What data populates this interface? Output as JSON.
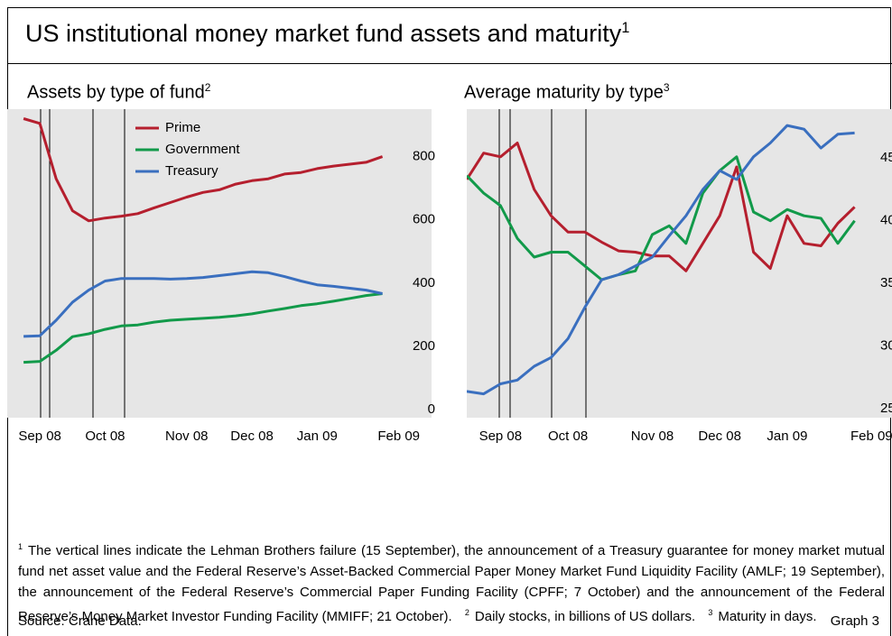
{
  "title": "US institutional money market fund assets and maturity",
  "title_note": "1",
  "footnotes": [
    {
      "marker": "1",
      "text": "The vertical lines indicate the Lehman Brothers failure (15 September), the announcement of a Treasury guarantee for money market mutual fund net asset value and the Federal Reserve’s Asset-Backed Commercial Paper Money Market Fund Liquidity Facility (AMLF; 19 September), the announcement of the Federal Reserve’s Commercial Paper Funding Facility (CPFF; 7 October) and the announcement of the Federal Reserve’s Money Market Investor Funding Facility (MMIFF; 21 October)."
    },
    {
      "marker": "2",
      "text": "Daily stocks, in billions of US dollars."
    },
    {
      "marker": "3",
      "text": "Maturity in days."
    }
  ],
  "source": "Source: Crane Data.",
  "graph_label": "Graph 3",
  "chart_data": [
    {
      "type": "line",
      "title": "Assets by type of fund",
      "title_note": "2",
      "categories": [
        null,
        null,
        "Sep 08",
        null,
        null,
        null,
        "Oct 08",
        null,
        null,
        null,
        null,
        "Nov 08",
        null,
        null,
        null,
        "Dec 08",
        null,
        null,
        null,
        "Jan 09",
        null,
        null,
        null,
        null,
        "Feb 09",
        null
      ],
      "series": [
        {
          "name": "Prime",
          "color": "#b51f2e",
          "values": [
            null,
            920,
            905,
            730,
            629,
            597,
            606,
            612,
            620,
            638,
            655,
            672,
            687,
            695,
            713,
            724,
            730,
            745,
            750,
            762,
            770,
            776,
            782,
            800,
            null,
            null
          ]
        },
        {
          "name": "Government",
          "color": "#129a4a",
          "values": [
            null,
            150,
            153,
            188,
            231,
            240,
            254,
            265,
            268,
            277,
            283,
            286,
            289,
            292,
            297,
            303,
            312,
            320,
            329,
            335,
            343,
            352,
            361,
            367,
            null,
            null
          ]
        },
        {
          "name": "Treasury",
          "color": "#3a6fbf",
          "values": [
            null,
            232,
            234,
            283,
            340,
            378,
            407,
            415,
            415,
            415,
            413,
            415,
            418,
            424,
            430,
            436,
            433,
            421,
            407,
            395,
            390,
            384,
            378,
            367,
            null,
            null
          ]
        }
      ],
      "ylim": [
        -25,
        950
      ],
      "yticks": [
        0,
        200,
        400,
        600,
        800
      ],
      "legend": "top-left"
    },
    {
      "type": "line",
      "title": "Average maturity by type",
      "title_note": "3",
      "categories": [
        null,
        null,
        "Sep 08",
        null,
        null,
        null,
        "Oct 08",
        null,
        null,
        null,
        null,
        "Nov 08",
        null,
        null,
        null,
        "Dec 08",
        null,
        null,
        null,
        "Jan 09",
        null,
        null,
        null,
        null,
        "Feb 09",
        null
      ],
      "series": [
        {
          "color": "#b51f2e",
          "values": [
            43.3,
            45.4,
            45.1,
            46.2,
            42.5,
            40.4,
            39.1,
            39.1,
            38.3,
            37.6,
            37.5,
            37.2,
            37.2,
            36.0,
            38.2,
            40.4,
            44.3,
            37.5,
            36.2,
            40.4,
            38.2,
            38.0,
            39.8,
            41.1,
            null,
            null
          ]
        },
        {
          "color": "#129a4a",
          "values": [
            43.6,
            42.2,
            41.2,
            38.6,
            37.1,
            37.5,
            37.5,
            36.4,
            35.3,
            35.7,
            36.0,
            38.9,
            39.6,
            38.2,
            42.2,
            44.0,
            45.1,
            40.7,
            40.0,
            40.9,
            40.4,
            40.2,
            38.2,
            40.0,
            null,
            null
          ]
        },
        {
          "color": "#3a6fbf",
          "values": [
            26.4,
            26.2,
            27.0,
            27.3,
            28.4,
            29.1,
            30.6,
            33.1,
            35.3,
            35.7,
            36.4,
            37.1,
            38.8,
            40.4,
            42.5,
            44.0,
            43.3,
            45.1,
            46.2,
            47.6,
            47.3,
            45.8,
            46.9,
            47.0,
            null,
            null
          ]
        }
      ],
      "ylim": [
        24.3,
        48.9
      ],
      "yticks": [
        25,
        30,
        35,
        40,
        45
      ]
    }
  ]
}
